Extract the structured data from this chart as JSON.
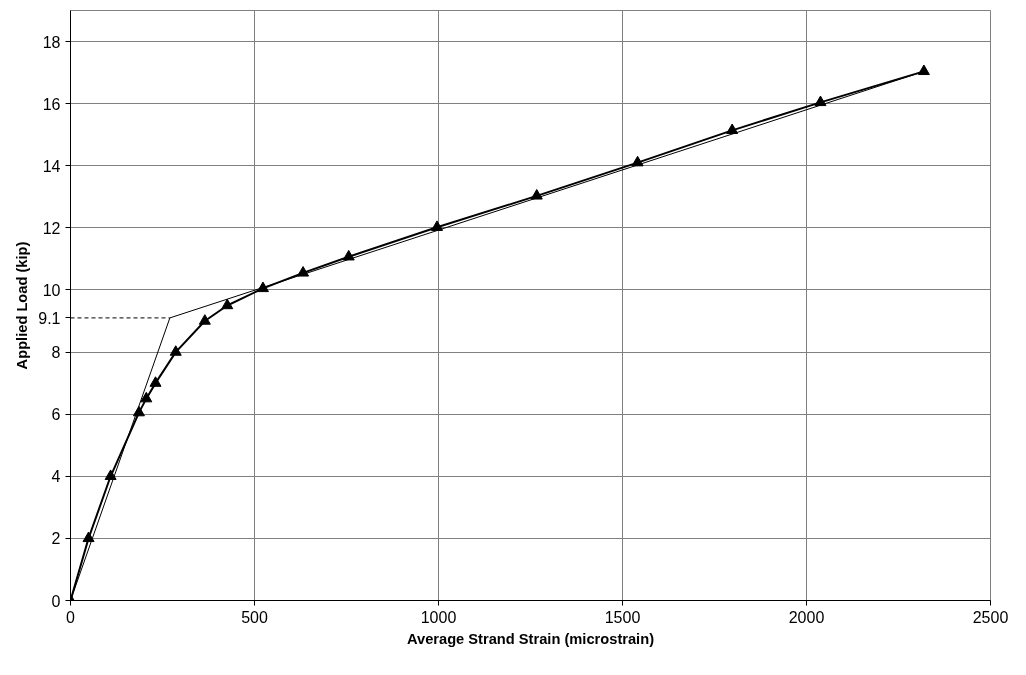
{
  "chart_data": {
    "type": "line",
    "xlabel": "Average Strand Strain (microstrain)",
    "ylabel": "Applied Load (kip)",
    "xlim": [
      0,
      2500
    ],
    "xticks": [
      0,
      500,
      1000,
      1500,
      2000,
      2500
    ],
    "ylim": [
      0,
      19
    ],
    "yticks": [
      0,
      2,
      4,
      6,
      8,
      {
        "value": 9.1,
        "label": "9.1"
      },
      10,
      12,
      14,
      16,
      18
    ],
    "grid": true,
    "series": [
      {
        "color": "#000000",
        "marker": "triangle",
        "line_style": "solid",
        "x": [
          0,
          49,
          109,
          186,
          206,
          231,
          286,
          365,
          426,
          523,
          632,
          756,
          996,
          1267,
          1541,
          1798,
          2038,
          2319
        ],
        "values": [
          0,
          2,
          4,
          6.05,
          6.5,
          7,
          8,
          9,
          9.5,
          10.05,
          10.55,
          11.07,
          12.02,
          13.03,
          14.1,
          15.14,
          16.04,
          17.04
        ]
      },
      {
        "color": "#000000",
        "marker": "none",
        "line_style": "solid",
        "x": [
          0,
          270,
          2319
        ],
        "values": [
          0,
          9.1,
          17.04
        ]
      },
      {
        "color": "#000000",
        "marker": "none",
        "line_style": "dashed",
        "x": [
          0,
          270
        ],
        "values": [
          9.1,
          9.1
        ]
      }
    ]
  }
}
